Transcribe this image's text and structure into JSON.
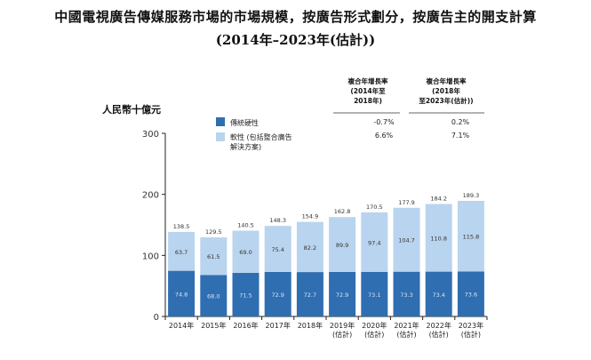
{
  "chart_data": {
    "type": "bar",
    "stacked": true,
    "title": "中國電視廣告傳媒服務市場的市場規模，按廣告形式劃分，按廣告主的開支計算",
    "subtitle": "(2014年–2023年(估計))",
    "ylabel": "人民幣十億元",
    "ylim": [
      0,
      300
    ],
    "yticks": [
      "0",
      "100",
      "200",
      "300"
    ],
    "categories": [
      [
        "2014年"
      ],
      [
        "2015年"
      ],
      [
        "2016年"
      ],
      [
        "2017年"
      ],
      [
        "2018年"
      ],
      [
        "2019年",
        "(估計)"
      ],
      [
        "2020年",
        "(估計)"
      ],
      [
        "2021年",
        "(估計)"
      ],
      [
        "2022年",
        "(估計)"
      ],
      [
        "2023年",
        "(估計)"
      ]
    ],
    "series": [
      {
        "name": "傳統硬性",
        "color": "#2f6eb1",
        "values": [
          74.8,
          68.0,
          71.5,
          72.9,
          72.7,
          72.9,
          73.1,
          73.3,
          73.4,
          73.6
        ],
        "labels": [
          "74.8",
          "68.0",
          "71.5",
          "72.9",
          "72.7",
          "72.9",
          "73.1",
          "73.3",
          "73.4",
          "73.6"
        ]
      },
      {
        "name": "軟性 (包括整合廣告解決方案)",
        "name_lines": [
          "軟性 (包括整合廣告",
          "解決方案)"
        ],
        "color": "#b9d4ee",
        "values": [
          63.7,
          61.5,
          69.0,
          75.4,
          82.2,
          89.9,
          97.4,
          104.7,
          110.8,
          115.8
        ],
        "labels": [
          "63.7",
          "61.5",
          "69.0",
          "75.4",
          "82.2",
          "89.9",
          "97.4",
          "104.7",
          "110.8",
          "115.8"
        ]
      }
    ],
    "totals": [
      "138.5",
      "129.5",
      "140.5",
      "148.3",
      "154.9",
      "162.8",
      "170.5",
      "177.9",
      "184.2",
      "189.3"
    ],
    "legend_position": "top-left",
    "grid": false
  },
  "cagr": {
    "col1_header": [
      "複合年增長率",
      "(2014年至",
      "2018年)"
    ],
    "col2_header": [
      "複合年增長率",
      "(2018年",
      "至2023年(估計))"
    ],
    "col1_values": [
      "-0.7%",
      "6.6%"
    ],
    "col2_values": [
      "0.2%",
      "7.1%"
    ]
  }
}
